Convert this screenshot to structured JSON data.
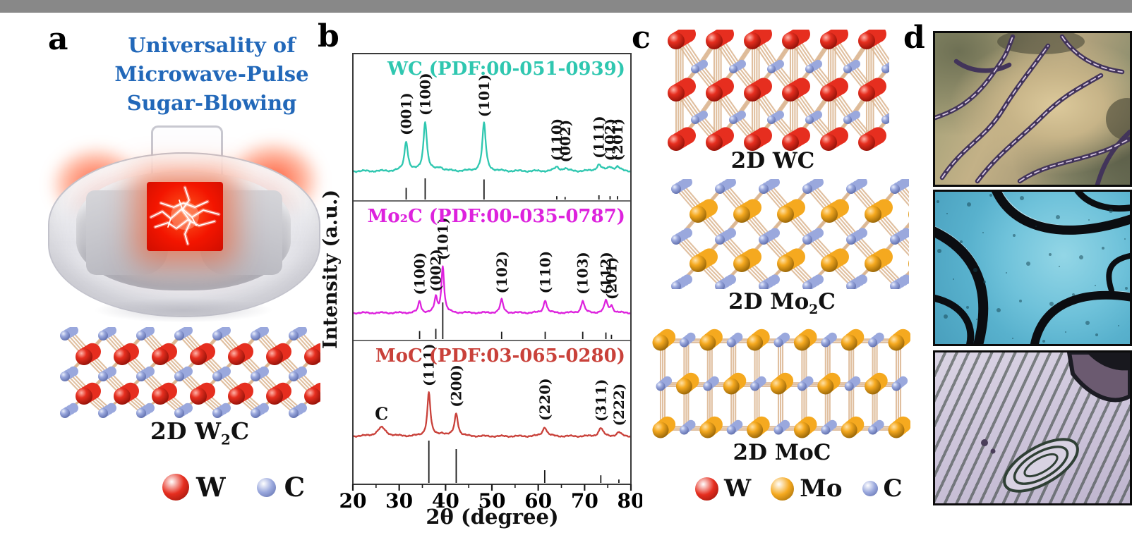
{
  "figure": {
    "panel_labels": {
      "a": "a",
      "b": "b",
      "c": "c",
      "d": "d"
    }
  },
  "panel_a": {
    "title_lines": [
      "Universality of",
      "Microwave-Pulse",
      "Sugar-Blowing"
    ],
    "title_color": "#2268b9",
    "structure_caption": {
      "pre": "2D W",
      "sub": "2",
      "post": "C"
    },
    "legend": [
      {
        "name": "W",
        "color": "#e62e1f",
        "dark": "#8c0f06"
      },
      {
        "name": "C",
        "color": "#9aa8dd",
        "dark": "#5a69a8"
      }
    ]
  },
  "chart_data": {
    "type": "line",
    "xlabel": "2θ (degree)",
    "ylabel": "Intensity (a.u.)",
    "xlim": [
      20,
      80
    ],
    "x_ticks": [
      20,
      30,
      40,
      50,
      60,
      70,
      80
    ],
    "legend_position": "none",
    "grid": false,
    "panels": [
      {
        "name": "WC",
        "title": "WC (PDF:00-051-0939)",
        "color": "#2fc7b0",
        "peaks": [
          {
            "two_theta": 31.5,
            "rel_intensity": 0.6,
            "hkl": "(001)",
            "width": 0.45
          },
          {
            "two_theta": 35.6,
            "rel_intensity": 1.0,
            "hkl": "(100)",
            "width": 0.45
          },
          {
            "two_theta": 38.8,
            "rel_intensity": 0.07,
            "hkl": "",
            "width": 0.7
          },
          {
            "two_theta": 48.3,
            "rel_intensity": 0.97,
            "hkl": "(101)",
            "width": 0.45
          },
          {
            "two_theta": 64.0,
            "rel_intensity": 0.08,
            "hkl": "(110)",
            "width": 0.6
          },
          {
            "two_theta": 65.8,
            "rel_intensity": 0.05,
            "hkl": "(002)",
            "width": 0.6
          },
          {
            "two_theta": 73.1,
            "rel_intensity": 0.13,
            "hkl": "(111)",
            "width": 0.6
          },
          {
            "two_theta": 75.5,
            "rel_intensity": 0.08,
            "hkl": "(102)",
            "width": 0.6
          },
          {
            "two_theta": 77.1,
            "rel_intensity": 0.08,
            "hkl": "(201)",
            "width": 0.6
          }
        ],
        "ref_sticks": [
          [
            31.5,
            0.55
          ],
          [
            35.6,
            1.0
          ],
          [
            48.3,
            0.95
          ],
          [
            64.0,
            0.16
          ],
          [
            65.8,
            0.12
          ],
          [
            73.1,
            0.2
          ],
          [
            75.5,
            0.16
          ],
          [
            77.1,
            0.16
          ]
        ]
      },
      {
        "name": "Mo2C",
        "title": "Mo₂C (PDF:00-035-0787)",
        "color": "#dd22dd",
        "peaks": [
          {
            "two_theta": 34.4,
            "rel_intensity": 0.25,
            "hkl": "(100)",
            "width": 0.35
          },
          {
            "two_theta": 37.9,
            "rel_intensity": 0.32,
            "hkl": "(002)",
            "width": 0.35
          },
          {
            "two_theta": 39.4,
            "rel_intensity": 1.0,
            "hkl": "(101)",
            "width": 0.35
          },
          {
            "two_theta": 52.1,
            "rel_intensity": 0.28,
            "hkl": "(102)",
            "width": 0.4
          },
          {
            "two_theta": 61.5,
            "rel_intensity": 0.28,
            "hkl": "(110)",
            "width": 0.4
          },
          {
            "two_theta": 69.6,
            "rel_intensity": 0.26,
            "hkl": "(103)",
            "width": 0.4
          },
          {
            "two_theta": 74.6,
            "rel_intensity": 0.26,
            "hkl": "(112)",
            "width": 0.4
          },
          {
            "two_theta": 75.8,
            "rel_intensity": 0.15,
            "hkl": "(201)",
            "width": 0.4
          }
        ],
        "ref_sticks": [
          [
            34.4,
            0.22
          ],
          [
            37.9,
            0.28
          ],
          [
            39.4,
            1.0
          ],
          [
            52.1,
            0.2
          ],
          [
            61.5,
            0.2
          ],
          [
            69.6,
            0.2
          ],
          [
            74.6,
            0.18
          ],
          [
            75.8,
            0.12
          ]
        ]
      },
      {
        "name": "MoC",
        "title": "MoC (PDF:03-065-0280)",
        "color": "#c9413a",
        "peaks": [
          {
            "two_theta": 26.2,
            "rel_intensity": 0.2,
            "hkl": "C",
            "width": 1.1
          },
          {
            "two_theta": 36.4,
            "rel_intensity": 1.0,
            "hkl": "(111)",
            "width": 0.4
          },
          {
            "two_theta": 39.2,
            "rel_intensity": 0.06,
            "hkl": "",
            "width": 0.8
          },
          {
            "two_theta": 42.3,
            "rel_intensity": 0.52,
            "hkl": "(200)",
            "width": 0.45
          },
          {
            "two_theta": 61.4,
            "rel_intensity": 0.21,
            "hkl": "(220)",
            "width": 0.55
          },
          {
            "two_theta": 73.5,
            "rel_intensity": 0.19,
            "hkl": "(311)",
            "width": 0.55
          },
          {
            "two_theta": 77.4,
            "rel_intensity": 0.09,
            "hkl": "(222)",
            "width": 0.55
          }
        ],
        "ref_sticks": [
          [
            36.4,
            1.0
          ],
          [
            42.3,
            0.8
          ],
          [
            61.4,
            0.3
          ],
          [
            73.5,
            0.18
          ],
          [
            77.4,
            0.08
          ]
        ]
      }
    ]
  },
  "panel_c": {
    "captions": [
      {
        "pre": "2D WC",
        "sub": "",
        "post": ""
      },
      {
        "pre": "2D Mo",
        "sub": "2",
        "post": "C"
      },
      {
        "pre": "2D MoC",
        "sub": "",
        "post": ""
      }
    ],
    "legend": [
      {
        "name": "W",
        "color": "#e62e1f",
        "dark": "#8c0f06"
      },
      {
        "name": "Mo",
        "color": "#f5a91f",
        "dark": "#8f5f05"
      },
      {
        "name": "C",
        "color": "#9aa8dd",
        "dark": "#5a69a8"
      }
    ],
    "atom_colors": {
      "W": "#e62e1f",
      "Mo": "#f5a91f",
      "C": "#9aa8dd",
      "bond": "#dcb792"
    },
    "atom_colors_dark": {
      "W": "#8c0f06",
      "Mo": "#8f5f05",
      "C": "#5a69a8"
    }
  }
}
